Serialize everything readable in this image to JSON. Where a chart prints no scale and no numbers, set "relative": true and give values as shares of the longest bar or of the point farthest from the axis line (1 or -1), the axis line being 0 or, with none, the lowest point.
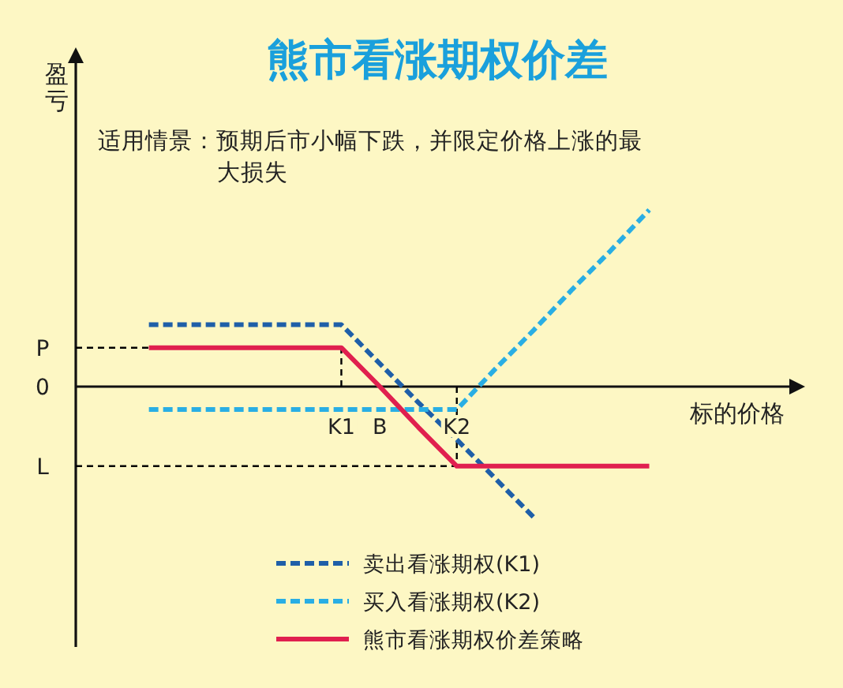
{
  "chart_data": {
    "type": "line",
    "title": "熊市看涨期权价差",
    "xlabel": "标的价格",
    "ylabel": "盈亏",
    "annotations": [
      "适用情景：预期后市小幅下跌，并限定价格上涨的最大损失",
      "0"
    ],
    "relative": true,
    "categories": [
      null,
      null,
      null,
      null,
      null,
      "K1",
      "B",
      null,
      "K2",
      null,
      null,
      null,
      null,
      null
    ],
    "series": [
      {
        "name": "卖出看涨期权(K1)",
        "color": "#1f5fa8",
        "line_style": "dashed",
        "values": [
          0.35,
          0.35,
          0.35,
          0.35,
          0.35,
          0.35,
          0.13,
          -0.09,
          -0.3,
          -0.52,
          -0.74,
          null,
          null,
          null
        ]
      },
      {
        "name": "买入看涨期权(K2)",
        "color": "#29aee4",
        "line_style": "dashed",
        "values": [
          -0.13,
          -0.13,
          -0.13,
          -0.13,
          -0.13,
          -0.13,
          -0.13,
          -0.13,
          -0.13,
          0.1,
          0.32,
          0.55,
          0.77,
          1
        ]
      },
      {
        "name": "熊市看涨期权价差策略",
        "color": "#e0204f",
        "line_style": "solid",
        "values": [
          0.22,
          0.22,
          0.22,
          0.22,
          0.22,
          0.22,
          0,
          -0.23,
          -0.45,
          -0.45,
          -0.45,
          -0.45,
          -0.45,
          -0.45
        ]
      }
    ],
    "ref_lines": [
      {
        "axis": "x",
        "value": "K1",
        "color": "#000000",
        "line_style": "dashed"
      },
      {
        "axis": "x",
        "value": "K2",
        "color": "#000000",
        "line_style": "dashed"
      },
      {
        "axis": "y",
        "value": 0.22,
        "label": "P",
        "color": "#000000",
        "line_style": "dashed"
      },
      {
        "axis": "y",
        "value": -0.45,
        "label": "L",
        "color": "#000000",
        "line_style": "dashed"
      }
    ],
    "legend": "bottom",
    "grid": false
  }
}
